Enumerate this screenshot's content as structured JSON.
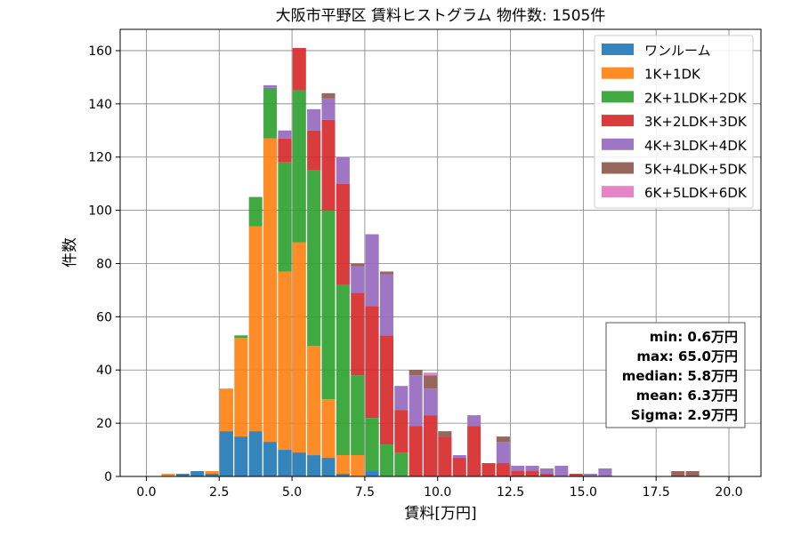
{
  "chart_data": {
    "type": "bar",
    "stacked": true,
    "title": "大阪市平野区 賃料ヒストグラム  物件数: 1505件",
    "xlabel": "賃料[万円]",
    "ylabel": "件数",
    "xlim": [
      -0.9,
      21.1
    ],
    "ylim": [
      0,
      168
    ],
    "xticks": [
      "0.0",
      "2.5",
      "5.0",
      "7.5",
      "10.0",
      "12.5",
      "15.0",
      "17.5",
      "20.0"
    ],
    "xtick_values": [
      0,
      2.5,
      5,
      7.5,
      10,
      12.5,
      15,
      17.5,
      20
    ],
    "yticks": [
      "0",
      "20",
      "40",
      "60",
      "80",
      "100",
      "120",
      "140",
      "160"
    ],
    "ytick_values": [
      0,
      20,
      40,
      60,
      80,
      100,
      120,
      140,
      160
    ],
    "grid": true,
    "legend_position": "top-right",
    "bin_width": 0.5,
    "bin_starts": [
      0.0,
      0.5,
      1.0,
      1.5,
      2.0,
      2.5,
      3.0,
      3.5,
      4.0,
      4.5,
      5.0,
      5.5,
      6.0,
      6.5,
      7.0,
      7.5,
      8.0,
      8.5,
      9.0,
      9.5,
      10.0,
      10.5,
      11.0,
      11.5,
      12.0,
      12.5,
      13.0,
      13.5,
      14.0,
      14.5,
      15.0,
      15.5,
      16.0,
      16.5,
      17.0,
      17.5,
      18.0,
      18.5,
      19.0,
      19.5
    ],
    "series": [
      {
        "name": "ワンルーム",
        "color": "#1f77b4",
        "values": [
          0,
          0,
          1,
          2,
          1,
          17,
          15,
          17,
          13,
          10,
          9,
          8,
          7,
          1,
          0,
          2,
          0,
          0,
          0,
          0,
          0,
          0,
          0,
          0,
          0,
          0,
          0,
          0,
          0,
          0,
          0,
          0,
          0,
          0,
          0,
          0,
          0,
          0,
          0,
          0
        ]
      },
      {
        "name": "1K+1DK",
        "color": "#ff7f0e",
        "values": [
          0,
          1,
          0,
          0,
          1,
          16,
          37,
          77,
          114,
          67,
          79,
          41,
          22,
          7,
          8,
          0,
          0,
          0,
          0,
          0,
          0,
          0,
          0,
          0,
          0,
          0,
          0,
          0,
          0,
          0,
          0,
          0,
          0,
          0,
          0,
          0,
          0,
          0,
          0,
          0
        ]
      },
      {
        "name": "2K+1LDK+2DK",
        "color": "#2ca02c",
        "values": [
          0,
          0,
          0,
          0,
          0,
          0,
          1,
          11,
          19,
          41,
          57,
          66,
          71,
          64,
          30,
          20,
          12,
          9,
          0,
          0,
          0,
          0,
          0,
          0,
          0,
          0,
          0,
          0,
          0,
          0,
          0,
          0,
          0,
          0,
          0,
          0,
          0,
          0,
          0,
          0
        ]
      },
      {
        "name": "3K+2LDK+3DK",
        "color": "#d62728",
        "values": [
          0,
          0,
          0,
          0,
          0,
          0,
          0,
          0,
          0,
          9,
          16,
          15,
          34,
          38,
          31,
          42,
          41,
          16,
          19,
          23,
          15,
          7,
          19,
          5,
          5,
          2,
          2,
          1,
          0,
          1,
          0,
          0,
          0,
          0,
          0,
          0,
          0,
          0,
          0,
          0
        ]
      },
      {
        "name": "4K+3LDK+4DK",
        "color": "#9467bd",
        "values": [
          0,
          0,
          0,
          0,
          0,
          0,
          0,
          0,
          1,
          3,
          0,
          8,
          8,
          10,
          10,
          27,
          23,
          9,
          19,
          10,
          0,
          1,
          4,
          0,
          8,
          2,
          2,
          2,
          4,
          0,
          1,
          3,
          0,
          0,
          0,
          0,
          0,
          0,
          0,
          0
        ]
      },
      {
        "name": "5K+4LDK+5DK",
        "color": "#8c564b",
        "values": [
          0,
          0,
          0,
          0,
          0,
          0,
          0,
          0,
          0,
          0,
          0,
          0,
          2,
          0,
          1,
          0,
          1,
          0,
          2,
          5,
          2,
          0,
          0,
          0,
          2,
          0,
          0,
          0,
          0,
          0,
          0,
          0,
          0,
          0,
          0,
          0,
          2,
          2,
          0,
          0
        ]
      },
      {
        "name": "6K+5LDK+6DK",
        "color": "#e377c2",
        "values": [
          0,
          0,
          0,
          0,
          0,
          0,
          0,
          0,
          0,
          0,
          0,
          0,
          0,
          0,
          0,
          0,
          0,
          0,
          0,
          1,
          0,
          0,
          0,
          0,
          0,
          0,
          0,
          0,
          0,
          0,
          0,
          0,
          0,
          0,
          0,
          0,
          0,
          0,
          0,
          0
        ]
      }
    ],
    "stats": [
      "min: 0.6万円",
      "max: 65.0万円",
      "median: 5.8万円",
      "mean: 6.3万円",
      "Sigma: 2.9万円"
    ]
  }
}
